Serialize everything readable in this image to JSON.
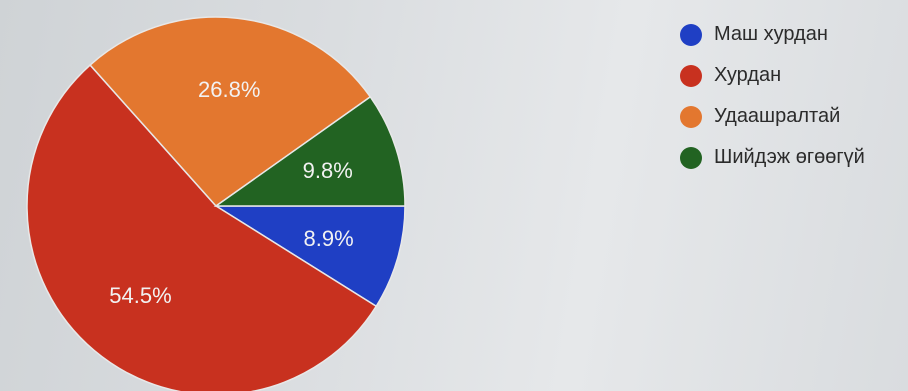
{
  "chart_data": {
    "type": "pie",
    "title": "",
    "slices": [
      {
        "label": "Маш хурдан",
        "value": 8.9,
        "display": "8.9%",
        "color": "#1f3fc4"
      },
      {
        "label": "Хурдан",
        "value": 54.5,
        "display": "54.5%",
        "color": "#c8311f"
      },
      {
        "label": "Удаашралтай",
        "value": 26.8,
        "display": "26.8%",
        "color": "#e3772f"
      },
      {
        "label": "Шийдэж өгөөгүй",
        "value": 9.8,
        "display": "9.8%",
        "color": "#226322"
      }
    ],
    "legend_position": "right"
  }
}
